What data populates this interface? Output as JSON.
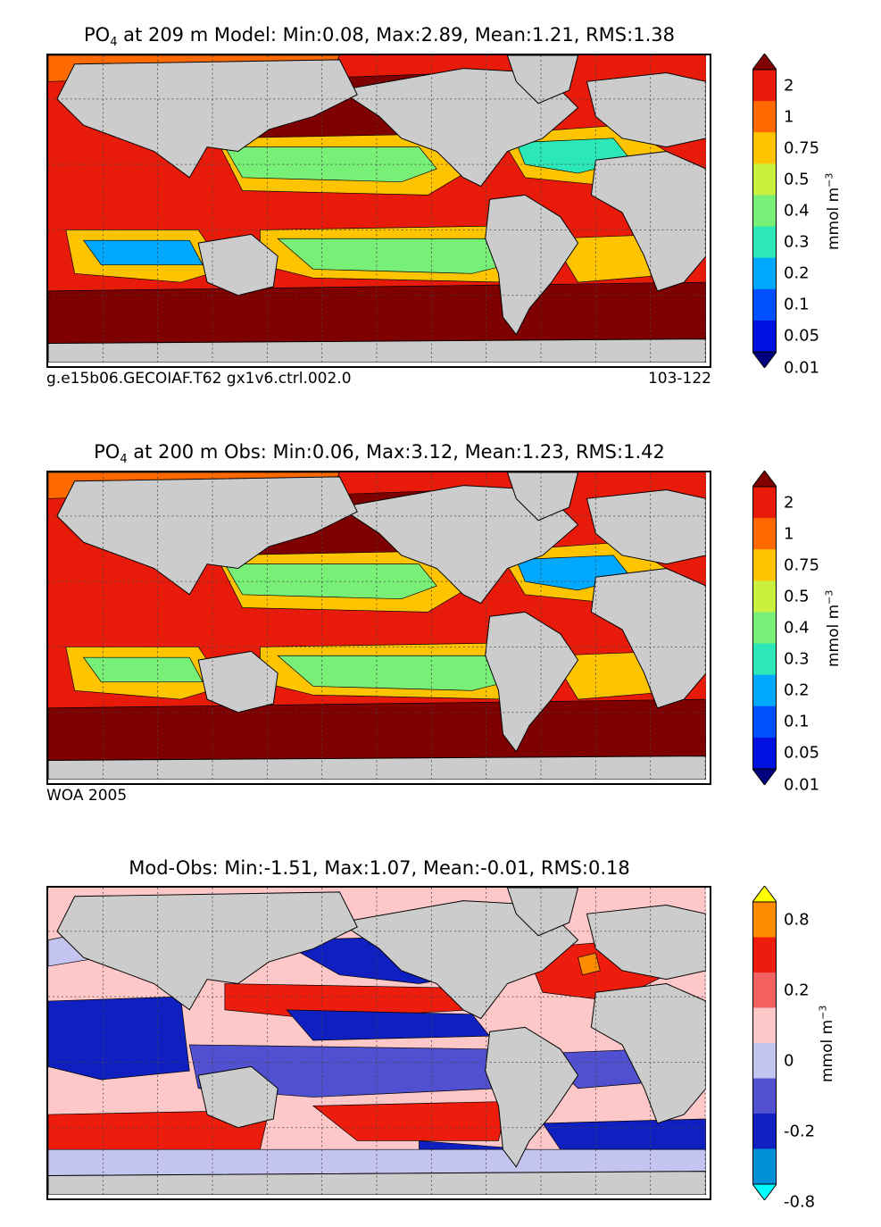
{
  "panels": [
    {
      "id": "model",
      "title_prefix": "PO",
      "title_sub": "4",
      "title_rest": " at 209 m Model: Min:0.08, Max:2.89, Mean:1.21, RMS:1.38",
      "left_note": "g.e15b06.GECOIAF.T62 gx1v6.ctrl.002.0",
      "right_note": "103-122",
      "colorbar": {
        "labels": [
          "2",
          "1",
          "0.75",
          "0.5",
          "0.4",
          "0.3",
          "0.2",
          "0.1",
          "0.05",
          "0.01"
        ],
        "colors": [
          "#7f0000",
          "#e81a0a",
          "#ff6a00",
          "#ffc400",
          "#c8f03c",
          "#78f078",
          "#2ce8b8",
          "#00a8ff",
          "#0050ff",
          "#0010e0",
          "#00007f"
        ],
        "units_base": "mmol m",
        "units_exp": "−3"
      }
    },
    {
      "id": "obs",
      "title_prefix": "PO",
      "title_sub": "4",
      "title_rest": " at 200 m Obs: Min:0.06, Max:3.12, Mean:1.23, RMS:1.42",
      "left_note": "WOA 2005",
      "right_note": "",
      "colorbar": {
        "labels": [
          "2",
          "1",
          "0.75",
          "0.5",
          "0.4",
          "0.3",
          "0.2",
          "0.1",
          "0.05",
          "0.01"
        ],
        "colors": [
          "#7f0000",
          "#e81a0a",
          "#ff6a00",
          "#ffc400",
          "#c8f03c",
          "#78f078",
          "#2ce8b8",
          "#00a8ff",
          "#0050ff",
          "#0010e0",
          "#00007f"
        ],
        "units_base": "mmol m",
        "units_exp": "−3"
      }
    },
    {
      "id": "diff",
      "title_prefix": "",
      "title_sub": "",
      "title_rest": "Mod-Obs: Min:-1.51, Max:1.07, Mean:-0.01, RMS:0.18",
      "left_note": "",
      "right_note": "",
      "colorbar": {
        "labels": [
          "0.8",
          "0.2",
          "0",
          "-0.2",
          "-0.8"
        ],
        "colors": [
          "#ffff00",
          "#ff8c00",
          "#ee1c0c",
          "#f26060",
          "#ffc8c8",
          "#c4c4f0",
          "#5050d0",
          "#1020c0",
          "#0090d8",
          "#00ffff"
        ],
        "units_base": "mmol m",
        "units_exp": "−3"
      }
    }
  ],
  "chart_data": [
    {
      "type": "heatmap",
      "title": "PO4 at 209 m Model: Min:0.08, Max:2.89, Mean:1.21, RMS:1.38",
      "variable": "PO4",
      "depth_m": 209,
      "source": "Model",
      "stats": {
        "min": 0.08,
        "max": 2.89,
        "mean": 1.21,
        "rms": 1.38
      },
      "contour_levels": [
        0.01,
        0.05,
        0.1,
        0.2,
        0.3,
        0.4,
        0.5,
        0.75,
        1,
        2
      ],
      "extend": "both",
      "units": "mmol m-3",
      "annotations": [
        "g.e15b06.GECOIAF.T62 gx1v6.ctrl.002.0",
        "103-122"
      ]
    },
    {
      "type": "heatmap",
      "title": "PO4 at 200 m Obs: Min:0.06, Max:3.12, Mean:1.23, RMS:1.42",
      "variable": "PO4",
      "depth_m": 200,
      "source": "Obs",
      "stats": {
        "min": 0.06,
        "max": 3.12,
        "mean": 1.23,
        "rms": 1.42
      },
      "contour_levels": [
        0.01,
        0.05,
        0.1,
        0.2,
        0.3,
        0.4,
        0.5,
        0.75,
        1,
        2
      ],
      "extend": "both",
      "units": "mmol m-3",
      "annotations": [
        "WOA 2005"
      ]
    },
    {
      "type": "heatmap",
      "title": "Mod-Obs: Min:-1.51, Max:1.07, Mean:-0.01, RMS:0.18",
      "variable": "PO4 difference",
      "source": "Model minus Obs",
      "stats": {
        "min": -1.51,
        "max": 1.07,
        "mean": -0.01,
        "rms": 0.18
      },
      "colorbar_tick_labels": [
        0.8,
        0.2,
        0,
        -0.2,
        -0.8
      ],
      "extend": "both",
      "units": "mmol m-3"
    }
  ]
}
